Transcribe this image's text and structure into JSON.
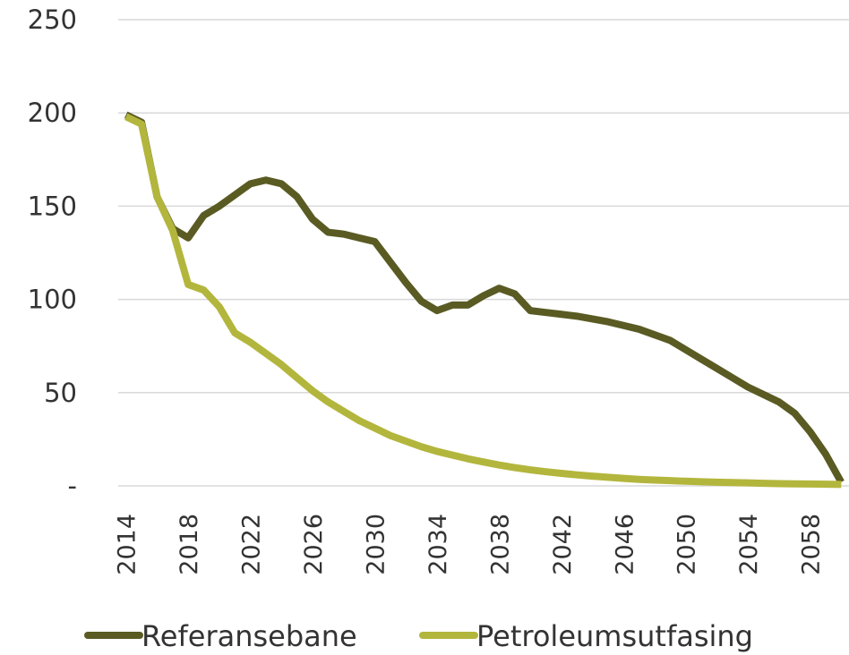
{
  "chart_data": {
    "type": "line",
    "categories": [
      2014,
      null,
      null,
      null,
      2018,
      null,
      null,
      null,
      2022,
      null,
      null,
      null,
      2026,
      null,
      null,
      null,
      2030,
      null,
      null,
      null,
      2034,
      null,
      null,
      null,
      2038,
      null,
      null,
      null,
      2042,
      null,
      null,
      null,
      2046,
      null,
      null,
      null,
      2050,
      null,
      null,
      null,
      2054,
      null,
      null,
      null,
      2058,
      null,
      null
    ],
    "series": [
      {
        "name": "Referansebane",
        "color": "#5a5b23",
        "values": [
          199,
          195,
          155,
          138,
          133,
          145,
          150,
          156,
          162,
          164,
          162,
          155,
          143,
          136,
          135,
          133,
          131,
          120,
          109,
          99,
          94,
          97,
          97,
          102,
          106,
          103,
          94,
          93,
          92,
          91,
          89.5,
          88,
          86,
          84,
          81,
          78,
          73,
          68,
          63,
          58,
          53,
          49,
          45,
          39,
          29,
          17,
          2
        ]
      },
      {
        "name": "Petroleumsutfasing",
        "color": "#b3b63c",
        "values": [
          198,
          194,
          155,
          137,
          108,
          105,
          96,
          82,
          77,
          71,
          65,
          58,
          51,
          45,
          40,
          35,
          31,
          27,
          24,
          21,
          18.5,
          16.5,
          14.5,
          12.8,
          11.2,
          9.8,
          8.6,
          7.6,
          6.7,
          5.9,
          5.2,
          4.6,
          4.0,
          3.5,
          3.1,
          2.8,
          2.5,
          2.2,
          2.0,
          1.8,
          1.6,
          1.4,
          1.2,
          1.1,
          1.0,
          0.9,
          0.8
        ]
      }
    ],
    "ylim": [
      0,
      250
    ],
    "yticks": [
      {
        "value": 0,
        "label": "-"
      },
      50,
      100,
      150,
      200,
      250
    ],
    "grid": true,
    "legend": "bottom"
  }
}
